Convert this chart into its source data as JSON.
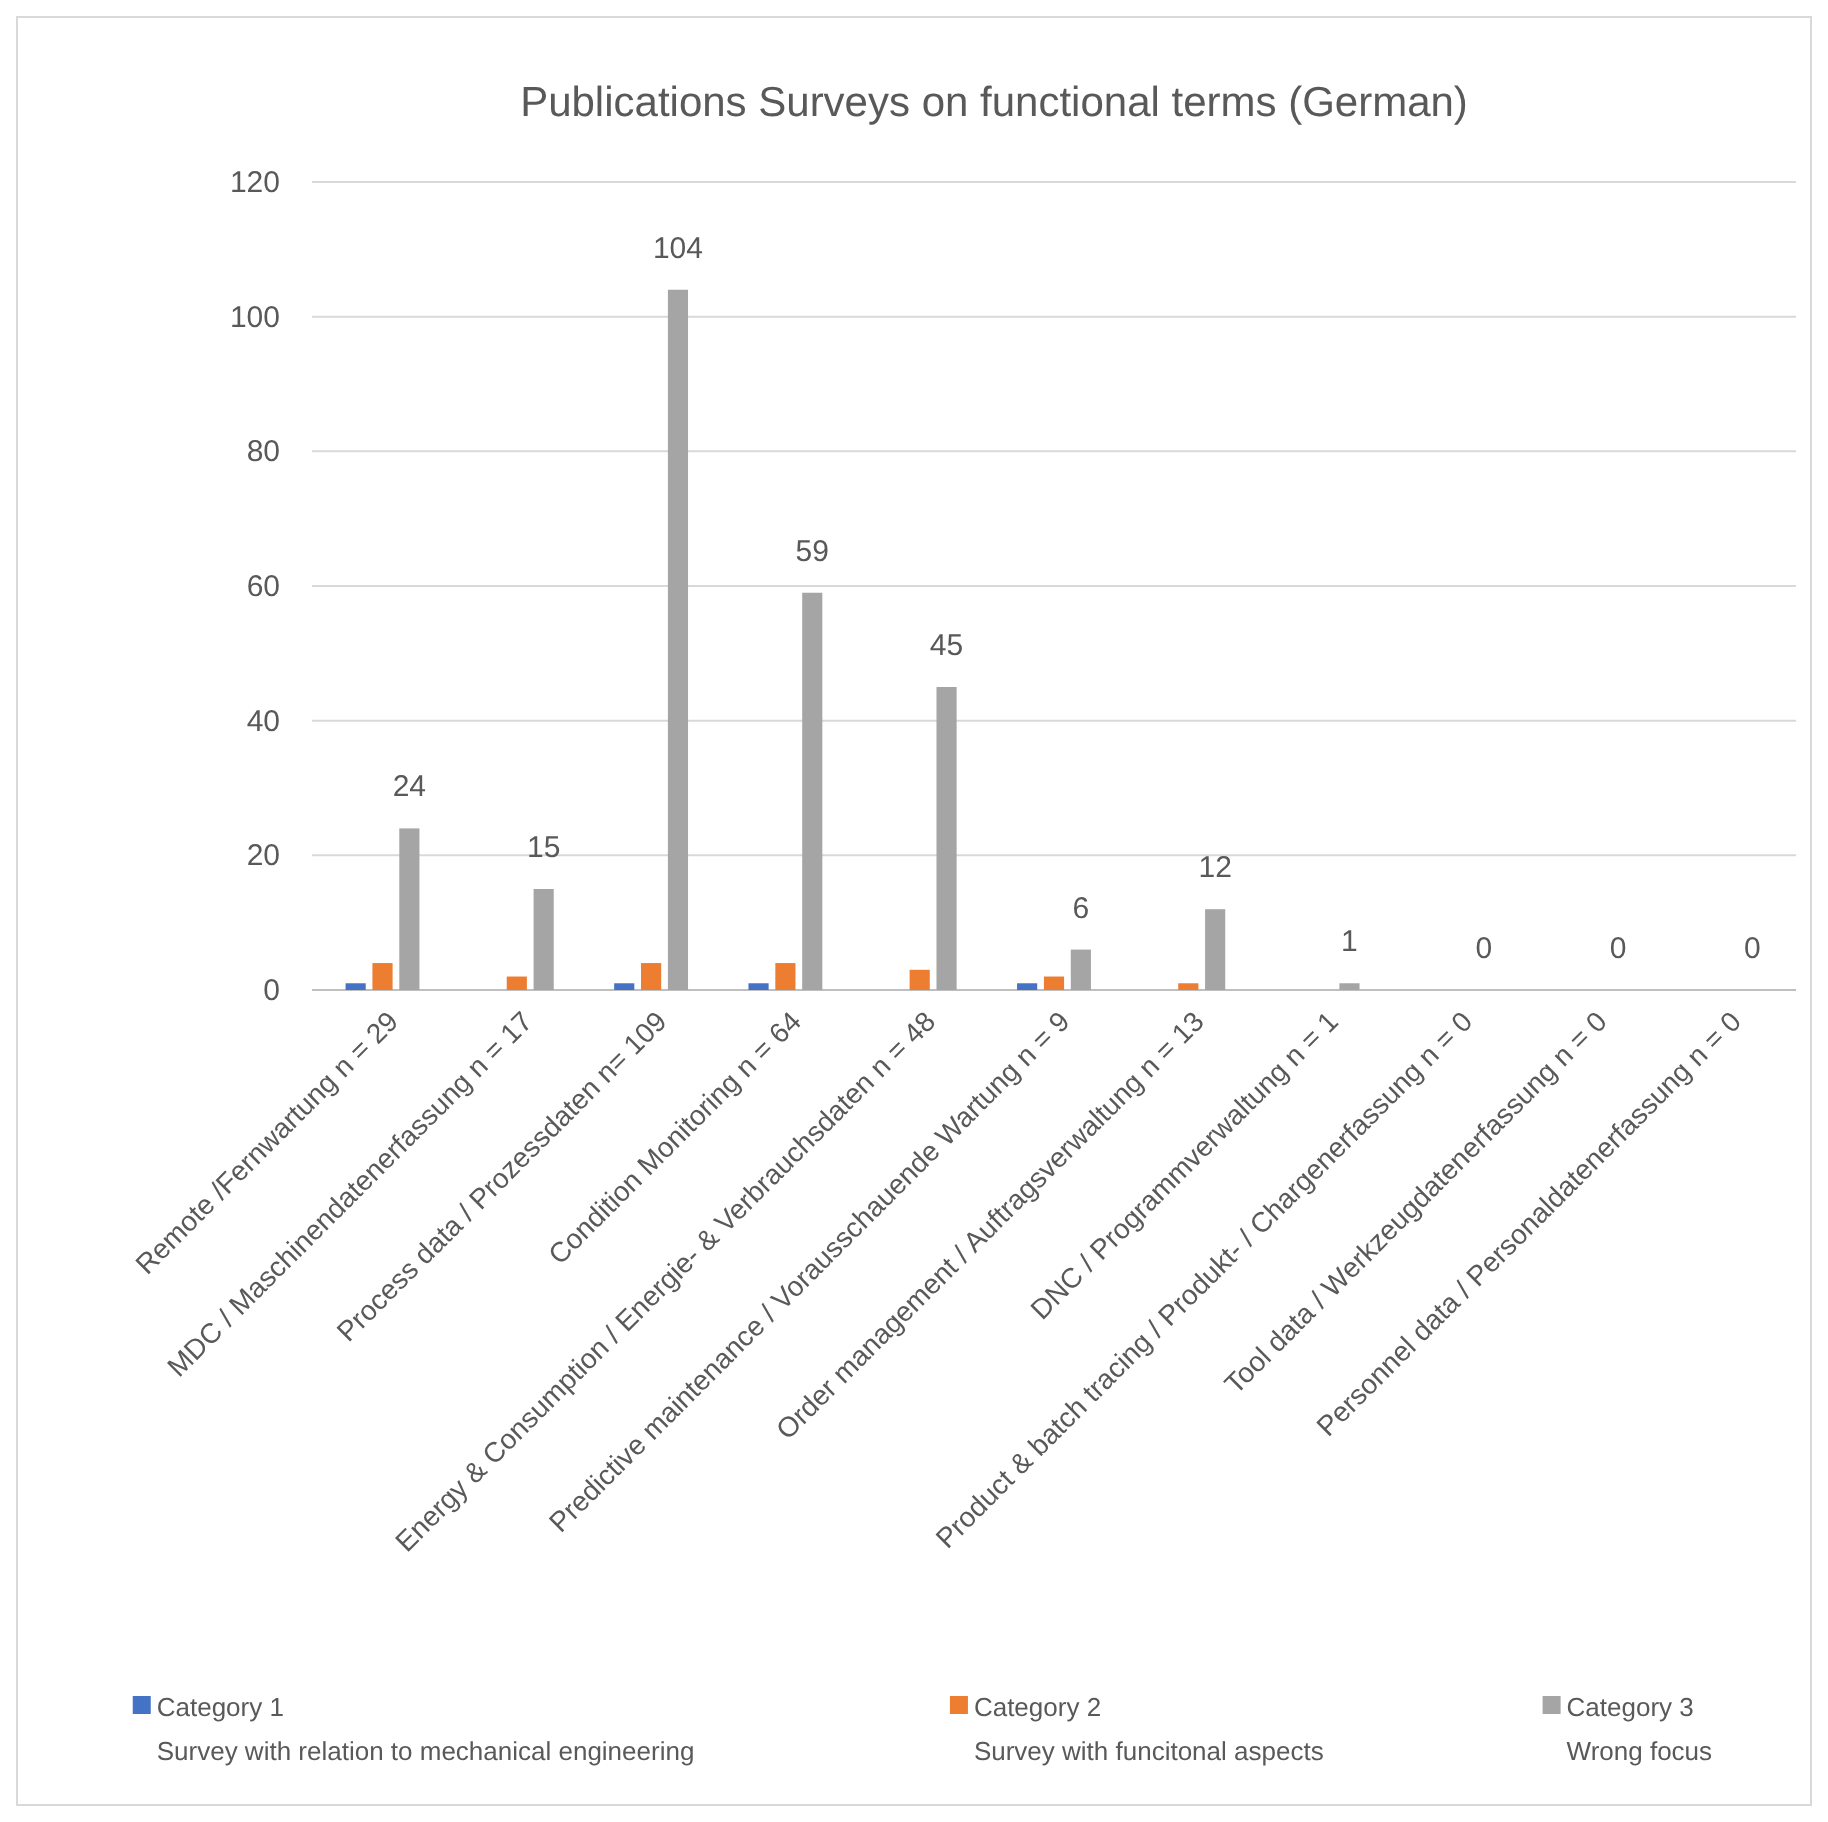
{
  "chart_data": {
    "type": "bar",
    "title": "Publications Surveys on functional terms (German)",
    "categories": [
      "Remote /Fernwartung n = 29",
      "MDC / Maschinendatenerfassung n = 17",
      "Process data / Prozessdaten n= 109",
      "Condition Monitoring n = 64",
      "Energy & Consumption / Energie- & Verbrauchsdaten n = 48",
      "Predictive maintenance / Vorausschauende Wartung n = 9",
      "Order management / Auftragsverwaltung n = 13",
      "DNC / Programmverwaltung n = 1",
      "Product & batch tracing / Produkt- / Chargenerfassung n = 0",
      "Tool data / Werkzeugdatenerfassung n = 0",
      "Personnel data / Personaldatenerfassung n = 0"
    ],
    "series": [
      {
        "name": "Category 1\nSurvey with relation to mechanical engineering",
        "color": "#4472c4",
        "values": [
          1,
          0,
          1,
          1,
          0,
          1,
          0,
          0,
          0,
          0,
          0
        ]
      },
      {
        "name": "Category 2\nSurvey with funcitonal aspects",
        "color": "#ed7d31",
        "values": [
          4,
          2,
          4,
          4,
          3,
          2,
          1,
          0,
          0,
          0,
          0
        ]
      },
      {
        "name": "Category 3\nWrong focus",
        "color": "#a5a5a5",
        "values": [
          24,
          15,
          104,
          59,
          45,
          6,
          12,
          1,
          0,
          0,
          0
        ],
        "value_labels": [
          "24",
          "15",
          "104",
          "59",
          "45",
          "6",
          "12",
          "1",
          "0",
          "0",
          "0"
        ]
      }
    ],
    "ylim": [
      0,
      120
    ],
    "yticks": [
      0,
      20,
      40,
      60,
      80,
      100,
      120
    ],
    "grid": "y",
    "legend": "bottom"
  }
}
